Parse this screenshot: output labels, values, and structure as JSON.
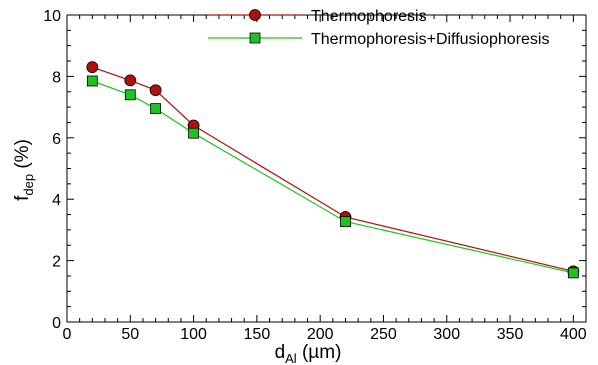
{
  "chart_data": {
    "type": "line",
    "title": "",
    "xlabel": {
      "main": "d",
      "sub": "Al",
      "unit": " (µm)"
    },
    "ylabel": {
      "main": "f",
      "sub": "dep",
      "unit": " (%)"
    },
    "xlim": [
      0,
      410
    ],
    "ylim": [
      0,
      10
    ],
    "xticks": [
      0,
      50,
      100,
      150,
      200,
      250,
      300,
      350,
      400
    ],
    "yticks": [
      0,
      2,
      4,
      6,
      8,
      10
    ],
    "grid": false,
    "legend_position": "top-right",
    "series": [
      {
        "name": "Thermophoresis",
        "color": "#b01010",
        "marker": "circle",
        "x": [
          20,
          50,
          70,
          100,
          220,
          400
        ],
        "y": [
          8.3,
          7.87,
          7.55,
          6.4,
          3.42,
          1.65
        ]
      },
      {
        "name": "Thermophoresis+Diffusiophoresis",
        "color": "#1fc21f",
        "marker": "square",
        "x": [
          20,
          50,
          70,
          100,
          220,
          400
        ],
        "y": [
          7.85,
          7.4,
          6.95,
          6.15,
          3.27,
          1.6
        ]
      }
    ]
  }
}
